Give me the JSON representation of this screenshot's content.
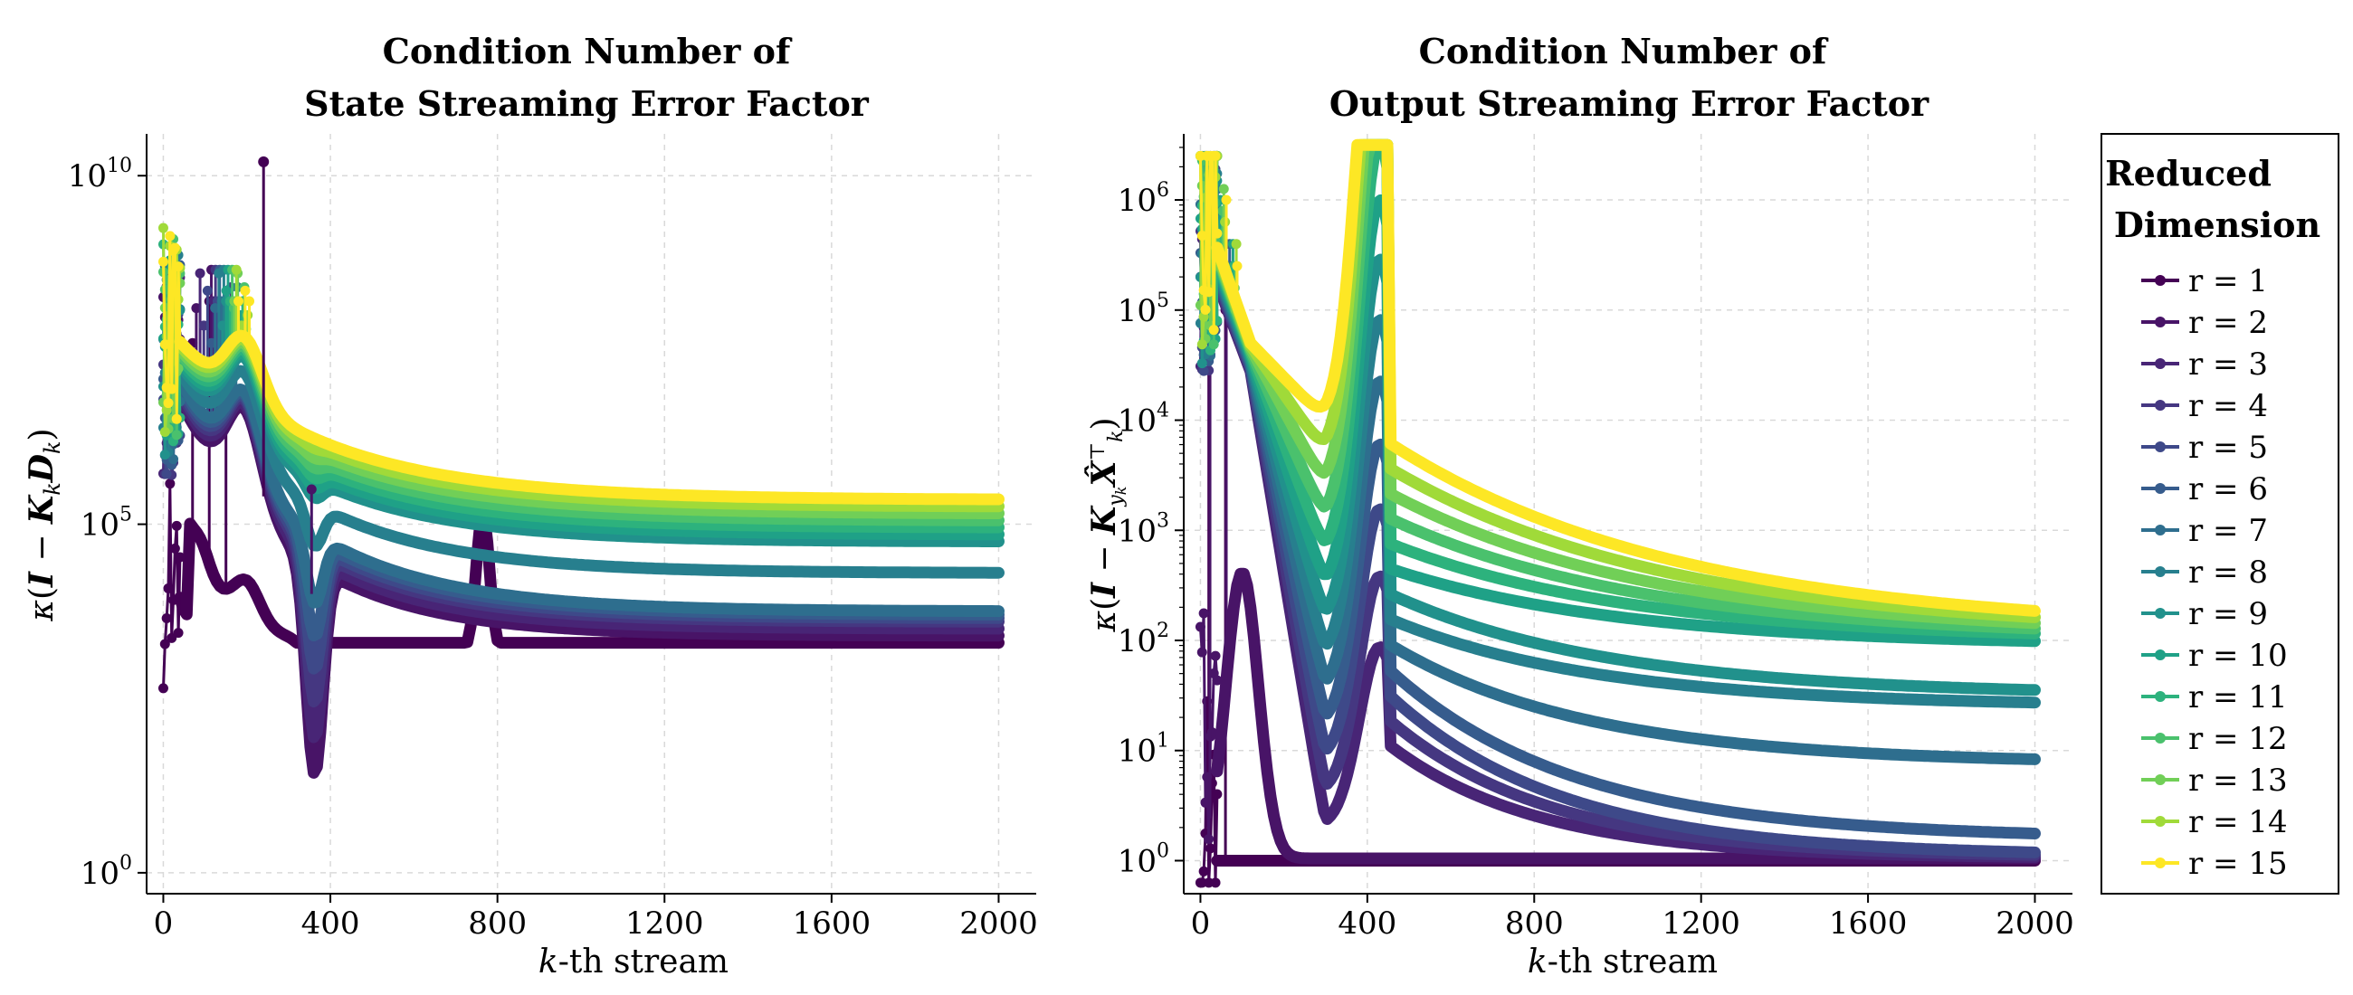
{
  "chart_data": [
    {
      "type": "line",
      "title": [
        "Condition Number of",
        "State Streaming Error Factor"
      ],
      "xlabel": "k-th stream",
      "ylabel": "κ(I − K_k D_k)",
      "xlim": [
        -40,
        2090
      ],
      "ylim_log10": [
        -0.3,
        10.6
      ],
      "yscale": "log",
      "xticks": [
        0,
        400,
        800,
        1200,
        1600,
        2000
      ],
      "yticks_log10": [
        0,
        5,
        10
      ],
      "ytick_labels": [
        "10^0",
        "10^5",
        "10^10"
      ],
      "grid": true,
      "series_log10_end_values": {
        "r = 1": 3.3,
        "r = 2": 3.4,
        "r = 3": 3.5,
        "r = 4": 3.6,
        "r = 5": 3.65,
        "r = 6": 3.7,
        "r = 7": 3.75,
        "r = 8": 4.3,
        "r = 9": 4.75,
        "r = 10": 4.85,
        "r = 11": 4.95,
        "r = 12": 5.05,
        "r = 13": 5.15,
        "r = 14": 5.25,
        "r = 15": 5.35
      }
    },
    {
      "type": "line",
      "title": [
        "Condition Number of",
        "Output Streaming Error Factor"
      ],
      "xlabel": "k-th stream",
      "ylabel": "κ(I − K_{y_k} X̂_k^T)",
      "xlim": [
        -40,
        2090
      ],
      "ylim_log10": [
        -0.3,
        6.6
      ],
      "yscale": "log",
      "xticks": [
        0,
        400,
        800,
        1200,
        1600,
        2000
      ],
      "yticks_log10": [
        0,
        1,
        2,
        3,
        4,
        5,
        6
      ],
      "ytick_labels": [
        "10^0",
        "10^1",
        "10^2",
        "10^3",
        "10^4",
        "10^5",
        "10^6"
      ],
      "grid": true,
      "series_log10_end_values": {
        "r = 1": 0.0,
        "r = 2": 0.0,
        "r = 3": 0.02,
        "r = 4": 0.03,
        "r = 5": 0.04,
        "r = 6": 0.2,
        "r = 7": 0.88,
        "r = 8": 1.4,
        "r = 9": 1.5,
        "r = 10": 1.95,
        "r = 11": 2.0,
        "r = 12": 2.02,
        "r = 13": 2.04,
        "r = 14": 2.06,
        "r = 15": 2.08
      }
    }
  ],
  "legend": {
    "title": [
      "Reduced",
      "Dimension"
    ],
    "placement": "right",
    "entries": [
      "r = 1",
      "r = 2",
      "r = 3",
      "r = 4",
      "r = 5",
      "r = 6",
      "r = 7",
      "r = 8",
      "r = 9",
      "r = 10",
      "r = 11",
      "r = 12",
      "r = 13",
      "r = 14",
      "r = 15"
    ],
    "colors": [
      "#440154",
      "#481467",
      "#482576",
      "#453781",
      "#3e4989",
      "#365c8d",
      "#2e6e8e",
      "#277f8e",
      "#21918c",
      "#1fa187",
      "#2db27d",
      "#4ac16d",
      "#71cf57",
      "#a0da39",
      "#fde725"
    ]
  }
}
